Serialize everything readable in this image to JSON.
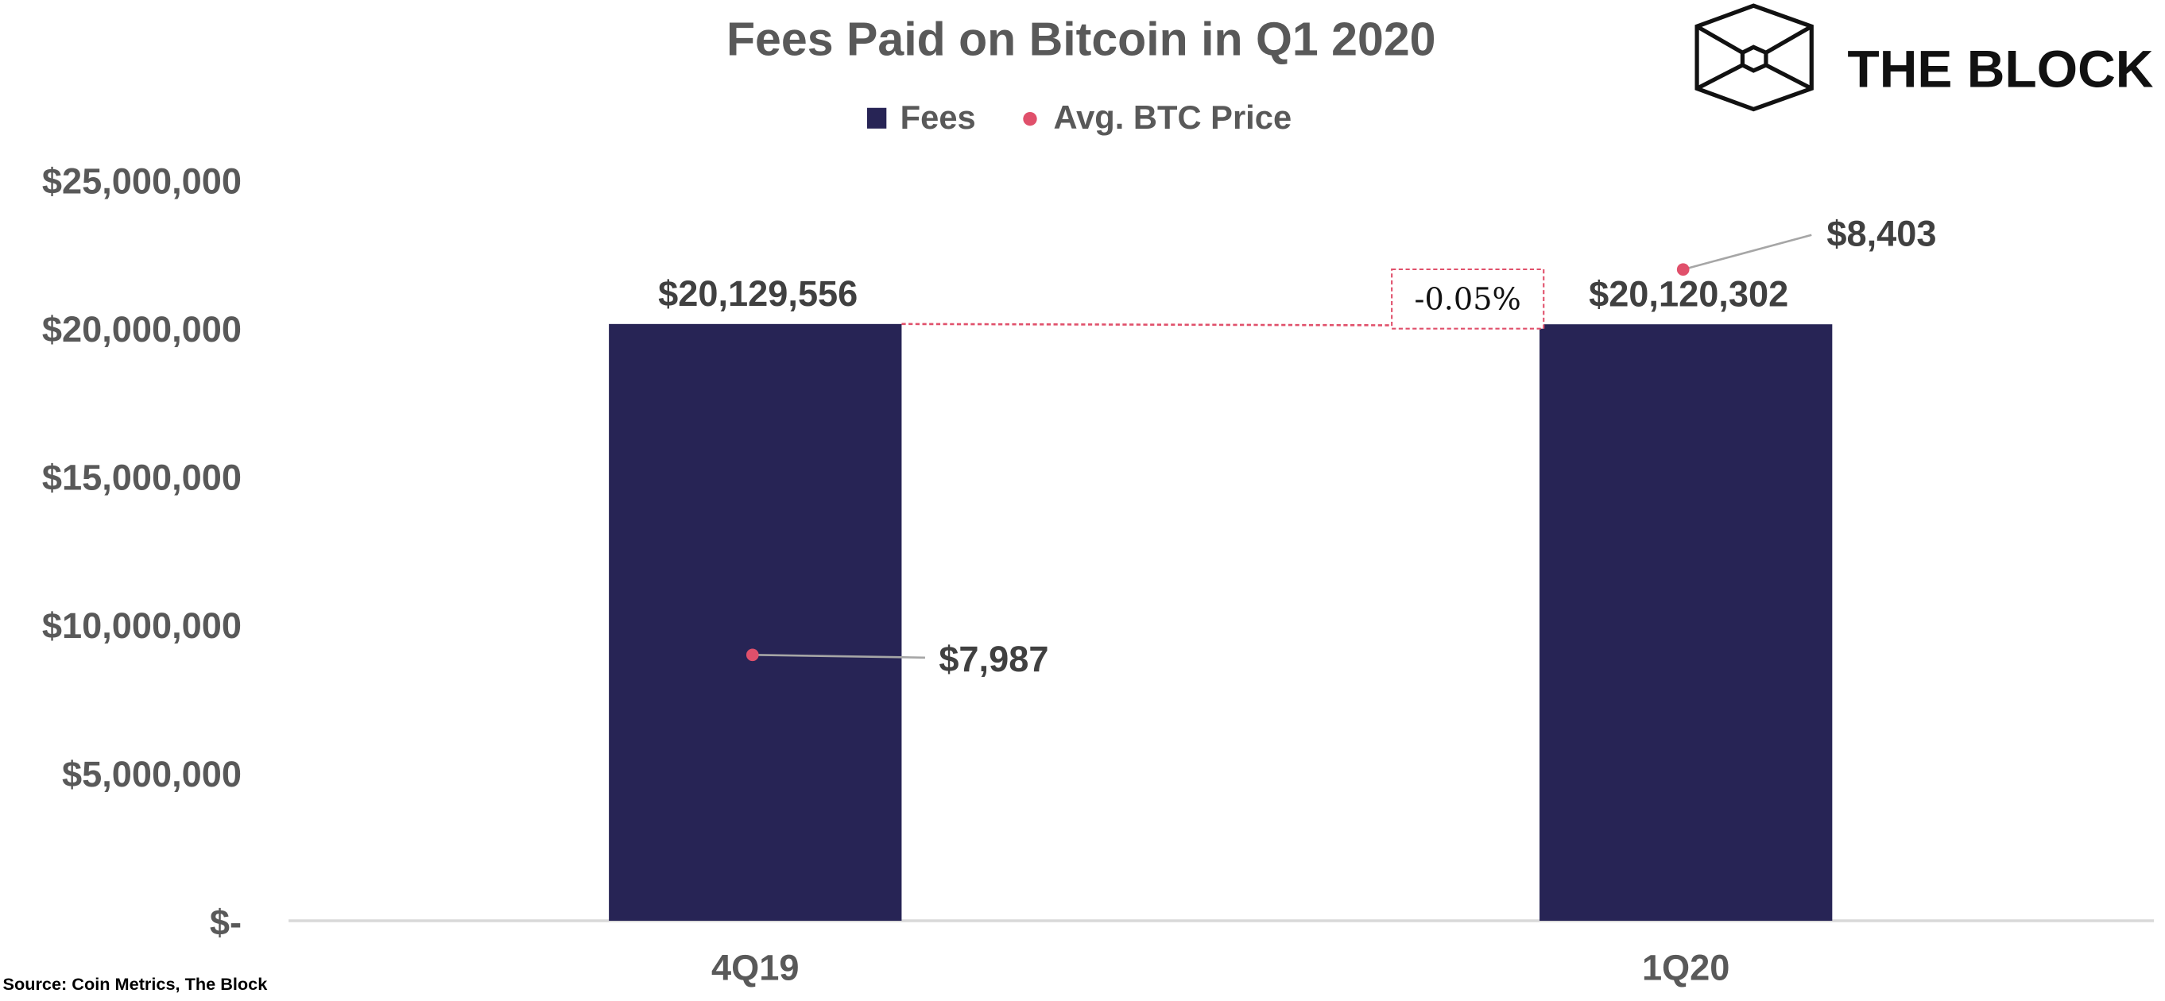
{
  "chart_data": {
    "type": "bar",
    "title": "Fees Paid on Bitcoin in Q1 2020",
    "categories": [
      "4Q19",
      "1Q20"
    ],
    "series": [
      {
        "name": "Fees",
        "kind": "bar",
        "values": [
          20129556,
          20120302
        ],
        "labels": [
          "$20,129,556",
          "$20,120,302"
        ],
        "color": "#272455"
      },
      {
        "name": "Avg. BTC Price",
        "kind": "scatter",
        "axis": "secondary",
        "values": [
          7987,
          8403
        ],
        "labels": [
          "$7,987",
          "$8,403"
        ],
        "color": "#e0506b"
      }
    ],
    "ylim": [
      0,
      25000000
    ],
    "y2lim": [
      7700,
      8500
    ],
    "y2_visible": false,
    "yticks": [
      0,
      5000000,
      10000000,
      15000000,
      20000000,
      25000000
    ],
    "ytick_labels": [
      "$-",
      "$5,000,000",
      "$10,000,000",
      "$15,000,000",
      "$20,000,000",
      "$25,000,000"
    ],
    "grid": false,
    "legend": "top",
    "annotation": {
      "text": "-0.05%",
      "color": "#e0506b"
    },
    "source": "Source: Coin Metrics, The Block"
  },
  "logo": {
    "text": "THE BLOCK"
  }
}
